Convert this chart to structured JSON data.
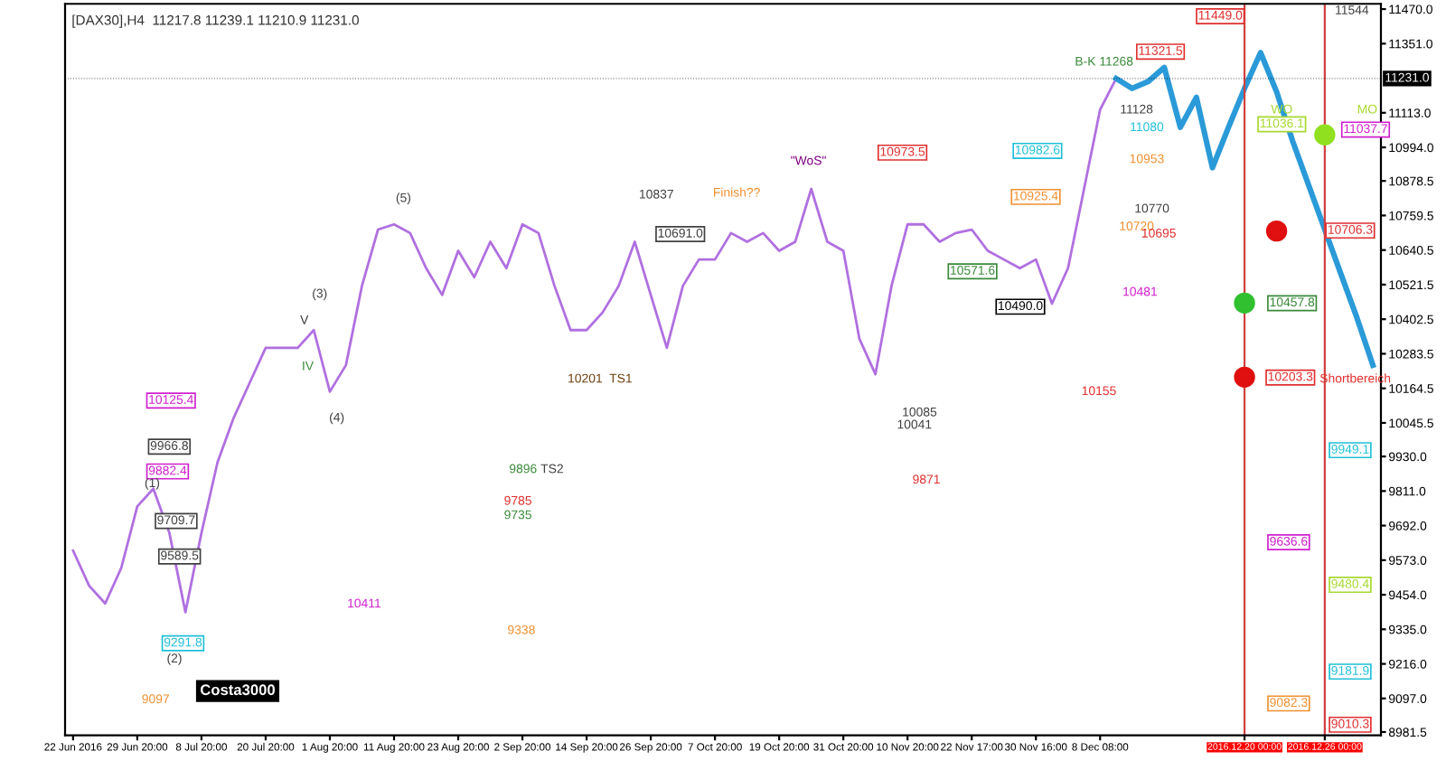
{
  "chart_data": {
    "type": "line",
    "title": "[DAX30],H4  11217.8 11239.1 11210.9 11231.0",
    "categories": [
      "22 Jun 2016",
      null,
      null,
      null,
      "29 Jun 20:00",
      null,
      null,
      null,
      "8 Jul 20:00",
      null,
      null,
      null,
      "20 Jul 20:00",
      null,
      null,
      null,
      "1 Aug 20:00",
      null,
      null,
      null,
      "11 Aug 20:00",
      null,
      null,
      null,
      "23 Aug 20:00",
      null,
      null,
      null,
      "2 Sep 20:00",
      null,
      null,
      null,
      "14 Sep 20:00",
      null,
      null,
      null,
      "26 Sep 20:00",
      null,
      null,
      null,
      "7 Oct 20:00",
      null,
      null,
      null,
      "19 Oct 20:00",
      null,
      null,
      null,
      "31 Oct 20:00",
      null,
      null,
      null,
      "10 Nov 20:00",
      null,
      null,
      null,
      "22 Nov 17:00",
      null,
      null,
      null,
      "30 Nov 16:00",
      null,
      null,
      null,
      "8 Dec 08:00",
      null,
      null,
      null,
      null,
      null,
      null,
      null,
      null,
      "2016.12.20 00:00",
      null,
      null,
      null,
      null,
      "2016.12.26 00:00",
      null,
      null,
      null
    ],
    "series": [
      {
        "color": "#b070e0",
        "values": [
          9606,
          9485,
          9424,
          9546,
          9758,
          9819,
          9667,
          9394,
          9667,
          9910,
          10062,
          10183,
          10304,
          10304,
          10304,
          10365,
          10153,
          10244,
          10517,
          10711,
          10729,
          10699,
          10578,
          10486,
          10638,
          10547,
          10669,
          10578,
          10729,
          10699,
          10517,
          10365,
          10365,
          10426,
          10517,
          10669,
          10486,
          10304,
          10517,
          10608,
          10608,
          10699,
          10669,
          10699,
          10638,
          10669,
          10851,
          10669,
          10638,
          10335,
          10213,
          10517,
          10729,
          10729,
          10669,
          10699,
          10711,
          10638,
          10608,
          10578,
          10608,
          10456,
          10578,
          10851,
          11124,
          11231,
          null,
          null,
          null,
          null,
          null,
          null,
          null,
          null,
          null,
          null,
          null,
          null,
          null,
          null,
          null,
          null
        ]
      },
      {
        "color": "#2a9ad8",
        "values": [
          null,
          null,
          null,
          null,
          null,
          null,
          null,
          null,
          null,
          null,
          null,
          null,
          null,
          null,
          null,
          null,
          null,
          null,
          null,
          null,
          null,
          null,
          null,
          null,
          null,
          null,
          null,
          null,
          null,
          null,
          null,
          null,
          null,
          null,
          null,
          null,
          null,
          null,
          null,
          null,
          null,
          null,
          null,
          null,
          null,
          null,
          null,
          null,
          null,
          null,
          null,
          null,
          null,
          null,
          null,
          null,
          null,
          null,
          null,
          null,
          null,
          null,
          null,
          null,
          null,
          11231,
          11197,
          11221,
          11269,
          11063,
          11166,
          10924,
          11063,
          11197,
          11320,
          11185,
          11015,
          10863,
          10711,
          10559,
          10408,
          10244
        ]
      },
      {
        "type": "scatter",
        "color": "#30c030",
        "values": [
          null,
          null,
          null,
          null,
          null,
          null,
          null,
          null,
          null,
          null,
          null,
          null,
          null,
          null,
          null,
          null,
          null,
          null,
          null,
          null,
          null,
          null,
          null,
          null,
          null,
          null,
          null,
          null,
          null,
          null,
          null,
          null,
          null,
          null,
          null,
          null,
          null,
          null,
          null,
          null,
          null,
          null,
          null,
          null,
          null,
          null,
          null,
          null,
          null,
          null,
          null,
          null,
          null,
          null,
          null,
          null,
          null,
          null,
          null,
          null,
          null,
          null,
          null,
          null,
          null,
          null,
          null,
          null,
          null,
          null,
          null,
          null,
          null,
          10458,
          null,
          null,
          null,
          null,
          null,
          null,
          null,
          null
        ]
      },
      {
        "type": "scatter",
        "color": "#e01010",
        "values": [
          null,
          null,
          null,
          null,
          null,
          null,
          null,
          null,
          null,
          null,
          null,
          null,
          null,
          null,
          null,
          null,
          null,
          null,
          null,
          null,
          null,
          null,
          null,
          null,
          null,
          null,
          null,
          null,
          null,
          null,
          null,
          null,
          null,
          null,
          null,
          null,
          null,
          null,
          null,
          null,
          null,
          null,
          null,
          null,
          null,
          null,
          null,
          null,
          null,
          null,
          null,
          null,
          null,
          null,
          null,
          null,
          null,
          null,
          null,
          null,
          null,
          null,
          null,
          null,
          null,
          null,
          null,
          null,
          null,
          null,
          null,
          null,
          null,
          10203,
          null,
          10706,
          null,
          null,
          null,
          null,
          null,
          null
        ]
      },
      {
        "type": "scatter",
        "color": "#90e020",
        "values": [
          null,
          null,
          null,
          null,
          null,
          null,
          null,
          null,
          null,
          null,
          null,
          null,
          null,
          null,
          null,
          null,
          null,
          null,
          null,
          null,
          null,
          null,
          null,
          null,
          null,
          null,
          null,
          null,
          null,
          null,
          null,
          null,
          null,
          null,
          null,
          null,
          null,
          null,
          null,
          null,
          null,
          null,
          null,
          null,
          null,
          null,
          null,
          null,
          null,
          null,
          null,
          null,
          null,
          null,
          null,
          null,
          null,
          null,
          null,
          null,
          null,
          null,
          null,
          null,
          null,
          null,
          null,
          null,
          null,
          null,
          null,
          null,
          null,
          null,
          null,
          null,
          null,
          null,
          11037,
          null,
          null,
          null
        ]
      }
    ],
    "ylim": [
      8970,
      11488
    ],
    "yticks": [
      {
        "value": 11470,
        "label": "11470.0"
      },
      {
        "value": 11351,
        "label": "11351.0"
      },
      {
        "value": 11113,
        "label": "11113.0"
      },
      {
        "value": 10994,
        "label": "10994.0"
      },
      10878.5,
      10759.5,
      10640.5,
      10521.5,
      10402.5,
      10283.5,
      10164.5,
      10045.5,
      {
        "value": 9930,
        "label": "9930.0"
      },
      {
        "value": 9811,
        "label": "9811.0"
      },
      {
        "value": 9692,
        "label": "9692.0"
      },
      {
        "value": 9573,
        "label": "9573.0"
      },
      {
        "value": 9454,
        "label": "9454.0"
      },
      {
        "value": 9335,
        "label": "9335.0"
      },
      {
        "value": 9216,
        "label": "9216.0"
      },
      {
        "value": 9097,
        "label": "9097.0"
      },
      8981.5
    ],
    "ref_lines": [
      {
        "axis": "x",
        "value": "2016.12.20 00:00",
        "color": "#d04040"
      },
      {
        "axis": "x",
        "value": "2016.12.26 00:00",
        "color": "#d04040"
      },
      {
        "axis": "y",
        "value": 11231,
        "label": "11231.0",
        "color": "#000000"
      }
    ],
    "annotations": [
      "11449.0",
      "11321.5",
      "10973.5",
      "10982.6",
      "10925.4",
      "10691.0",
      "10571.6",
      "10490.0",
      "10457.8",
      "11036.1",
      "11037.7",
      "10706.3",
      "10203.3",
      "9949.1",
      "9636.6",
      "9480.4",
      "9181.9",
      "9082.3",
      "9010.3",
      "10125.4",
      "9966.8",
      "9882.4",
      "9709.7",
      "9589.5",
      "9291.8",
      "10837",
      "Finish??",
      "\"WoS\"",
      "B-K 11268",
      "11128",
      "11080",
      "10953",
      "10770",
      "10720",
      "10695",
      "10481",
      "10155",
      "10085",
      "10041",
      "9871",
      "9896",
      "TS2",
      "9785",
      "9735",
      "9338",
      "10411",
      "9097",
      "10201  TS1",
      "(1)",
      "(2)",
      "(3)",
      "(4)",
      "(5)",
      "V",
      "IV",
      "Costa3000",
      "WO",
      "MO",
      "Shortbereich",
      "11544"
    ],
    "grid": false,
    "legend": false
  }
}
